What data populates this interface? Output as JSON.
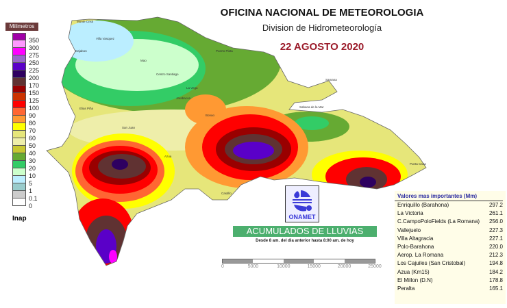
{
  "header": {
    "title": "OFICINA NACIONAL DE METEOROLOGIA",
    "subtitle": "Division de Hidrometeorología",
    "date": "22 AGOSTO 2020"
  },
  "legend": {
    "title": "Milimetros",
    "footer": "Inap",
    "classes": [
      {
        "color": "#a000a8",
        "label": "350"
      },
      {
        "color": "#ff99ff",
        "label": "300"
      },
      {
        "color": "#ff00ff",
        "label": "275"
      },
      {
        "color": "#9966cc",
        "label": "250"
      },
      {
        "color": "#5a00c8",
        "label": "225"
      },
      {
        "color": "#2e0060",
        "label": "200"
      },
      {
        "color": "#603232",
        "label": "170"
      },
      {
        "color": "#990000",
        "label": "150"
      },
      {
        "color": "#cc3300",
        "label": "125"
      },
      {
        "color": "#ff0000",
        "label": "100"
      },
      {
        "color": "#ff6633",
        "label": "90"
      },
      {
        "color": "#ff9933",
        "label": "80"
      },
      {
        "color": "#ffff00",
        "label": "70"
      },
      {
        "color": "#e6e67a",
        "label": "60"
      },
      {
        "color": "#eeeeaa",
        "label": "50"
      },
      {
        "color": "#c8c832",
        "label": "40"
      },
      {
        "color": "#66aa33",
        "label": "30"
      },
      {
        "color": "#33cc66",
        "label": "20"
      },
      {
        "color": "#ccffcc",
        "label": "10"
      },
      {
        "color": "#bbeeff",
        "label": "5"
      },
      {
        "color": "#99cccc",
        "label": "1"
      },
      {
        "color": "#cccccc",
        "label": "0.1"
      },
      {
        "color": "#ffffff",
        "label": "0"
      }
    ]
  },
  "map": {
    "cities": [
      "Monte Cristi",
      "Villa Vasquez",
      "Dajabon",
      "Mao",
      "Puerto Plata",
      "Centro Santiago",
      "La Vega",
      "Jarabacoa",
      "Bonao",
      "Samana",
      "Sabana de la Mar",
      "Elias Piña",
      "San Juan",
      "Azua",
      "Castillo",
      "Punta Cana"
    ]
  },
  "logo": {
    "text": "ONAMET"
  },
  "banner": {
    "title": "ACUMULADOS DE LLUVIAS",
    "subtitle": "Desde 8 am. del dia anterior hasta 8:00 am. de hoy"
  },
  "scale_bar": {
    "labels": [
      "0",
      "5000",
      "10000",
      "15000",
      "20000",
      "25000"
    ]
  },
  "table": {
    "title": "Valores mas importantes (Mm)",
    "rows": [
      {
        "station": "Enriquillo (Barahona)",
        "value": "297.2"
      },
      {
        "station": "La Victoria",
        "value": "261.1"
      },
      {
        "station": "C.CampoPoloFields (La Romana)",
        "value": "256.0"
      },
      {
        "station": "Vallejuelo",
        "value": "227.3"
      },
      {
        "station": "Villa Altagracia",
        "value": "227.1"
      },
      {
        "station": "Polo-Barahona",
        "value": "220.0"
      },
      {
        "station": "Aerop. La Romana",
        "value": "212.3"
      },
      {
        "station": "Los Cajuiles (San Cristobal)",
        "value": "194.8"
      },
      {
        "station": "Azua (Km15)",
        "value": "184.2"
      },
      {
        "station": "El Millon (D.N)",
        "value": "178.8"
      },
      {
        "station": "Peralta",
        "value": "165.1"
      }
    ]
  }
}
